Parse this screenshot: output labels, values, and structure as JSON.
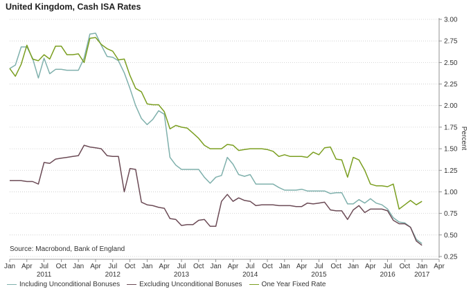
{
  "chart_data": {
    "type": "line",
    "title": "United Kingdom, Cash ISA Rates",
    "ylabel": "Percent",
    "ylim": [
      0.25,
      3.0
    ],
    "yticks": [
      "0.25",
      "0.50",
      "0.75",
      "1.00",
      "1.25",
      "1.50",
      "1.75",
      "2.00",
      "2.25",
      "2.50",
      "2.75",
      "3.00"
    ],
    "x_range": [
      2011.0,
      2017.25
    ],
    "month_ticks": [
      "Jan",
      "Apr",
      "Jul",
      "Oct",
      "Jan",
      "Apr",
      "Jul",
      "Oct",
      "Jan",
      "Apr",
      "Jul",
      "Oct",
      "Jan",
      "Apr",
      "Jul",
      "Oct",
      "Jan",
      "Apr",
      "Jul",
      "Oct",
      "Jan",
      "Apr",
      "Jul",
      "Oct",
      "Jan",
      "Apr"
    ],
    "years": [
      {
        "label": "2011",
        "x": 2011.5
      },
      {
        "label": "2012",
        "x": 2012.5
      },
      {
        "label": "2013",
        "x": 2013.5
      },
      {
        "label": "2014",
        "x": 2014.5
      },
      {
        "label": "2015",
        "x": 2015.5
      },
      {
        "label": "2016",
        "x": 2016.5
      },
      {
        "label": "2017",
        "x": 2017.0
      }
    ],
    "source": "Source: Macrobond, Bank of England",
    "grid": "horizontal-dotted",
    "legend_position": "bottom",
    "series": [
      {
        "name": "Including Unconditional Bonuses",
        "color": "#7fb0ac",
        "points": [
          [
            2011.0,
            2.43
          ],
          [
            2011.083,
            2.47
          ],
          [
            2011.167,
            2.68
          ],
          [
            2011.25,
            2.68
          ],
          [
            2011.333,
            2.55
          ],
          [
            2011.417,
            2.32
          ],
          [
            2011.5,
            2.55
          ],
          [
            2011.583,
            2.37
          ],
          [
            2011.667,
            2.42
          ],
          [
            2011.75,
            2.42
          ],
          [
            2011.833,
            2.41
          ],
          [
            2011.917,
            2.41
          ],
          [
            2012.0,
            2.41
          ],
          [
            2012.083,
            2.55
          ],
          [
            2012.167,
            2.83
          ],
          [
            2012.25,
            2.84
          ],
          [
            2012.333,
            2.7
          ],
          [
            2012.417,
            2.57
          ],
          [
            2012.5,
            2.56
          ],
          [
            2012.583,
            2.52
          ],
          [
            2012.667,
            2.38
          ],
          [
            2012.75,
            2.2
          ],
          [
            2012.833,
            2.0
          ],
          [
            2012.917,
            1.85
          ],
          [
            2013.0,
            1.78
          ],
          [
            2013.083,
            1.84
          ],
          [
            2013.167,
            1.94
          ],
          [
            2013.25,
            1.9
          ],
          [
            2013.333,
            1.4
          ],
          [
            2013.417,
            1.31
          ],
          [
            2013.5,
            1.26
          ],
          [
            2013.583,
            1.26
          ],
          [
            2013.667,
            1.26
          ],
          [
            2013.75,
            1.26
          ],
          [
            2013.833,
            1.17
          ],
          [
            2013.917,
            1.1
          ],
          [
            2014.0,
            1.17
          ],
          [
            2014.083,
            1.19
          ],
          [
            2014.167,
            1.4
          ],
          [
            2014.25,
            1.32
          ],
          [
            2014.333,
            1.2
          ],
          [
            2014.417,
            1.18
          ],
          [
            2014.5,
            1.2
          ],
          [
            2014.583,
            1.09
          ],
          [
            2014.667,
            1.09
          ],
          [
            2014.75,
            1.09
          ],
          [
            2014.833,
            1.09
          ],
          [
            2014.917,
            1.05
          ],
          [
            2015.0,
            1.02
          ],
          [
            2015.083,
            1.02
          ],
          [
            2015.167,
            1.02
          ],
          [
            2015.25,
            1.03
          ],
          [
            2015.333,
            1.01
          ],
          [
            2015.417,
            1.01
          ],
          [
            2015.5,
            1.01
          ],
          [
            2015.583,
            1.01
          ],
          [
            2015.667,
            0.98
          ],
          [
            2015.75,
            0.99
          ],
          [
            2015.833,
            0.99
          ],
          [
            2015.917,
            0.86
          ],
          [
            2016.0,
            0.86
          ],
          [
            2016.083,
            0.91
          ],
          [
            2016.167,
            0.87
          ],
          [
            2016.25,
            0.92
          ],
          [
            2016.333,
            0.87
          ],
          [
            2016.417,
            0.85
          ],
          [
            2016.5,
            0.8
          ],
          [
            2016.583,
            0.7
          ],
          [
            2016.667,
            0.65
          ],
          [
            2016.75,
            0.64
          ],
          [
            2016.833,
            0.59
          ],
          [
            2016.917,
            0.45
          ],
          [
            2017.0,
            0.4
          ]
        ]
      },
      {
        "name": "Excluding Unconditional Bonuses",
        "color": "#6b4a55",
        "points": [
          [
            2011.0,
            1.13
          ],
          [
            2011.167,
            1.13
          ],
          [
            2011.25,
            1.12
          ],
          [
            2011.333,
            1.12
          ],
          [
            2011.417,
            1.09
          ],
          [
            2011.5,
            1.34
          ],
          [
            2011.583,
            1.33
          ],
          [
            2011.667,
            1.38
          ],
          [
            2011.75,
            1.39
          ],
          [
            2011.833,
            1.4
          ],
          [
            2011.917,
            1.41
          ],
          [
            2012.0,
            1.42
          ],
          [
            2012.083,
            1.54
          ],
          [
            2012.167,
            1.52
          ],
          [
            2012.25,
            1.51
          ],
          [
            2012.333,
            1.5
          ],
          [
            2012.417,
            1.42
          ],
          [
            2012.5,
            1.41
          ],
          [
            2012.583,
            1.41
          ],
          [
            2012.667,
            1.0
          ],
          [
            2012.75,
            1.27
          ],
          [
            2012.833,
            1.26
          ],
          [
            2012.917,
            0.88
          ],
          [
            2013.0,
            0.85
          ],
          [
            2013.083,
            0.84
          ],
          [
            2013.167,
            0.82
          ],
          [
            2013.25,
            0.81
          ],
          [
            2013.333,
            0.69
          ],
          [
            2013.417,
            0.68
          ],
          [
            2013.5,
            0.61
          ],
          [
            2013.583,
            0.62
          ],
          [
            2013.667,
            0.62
          ],
          [
            2013.75,
            0.67
          ],
          [
            2013.833,
            0.68
          ],
          [
            2013.917,
            0.6
          ],
          [
            2014.0,
            0.6
          ],
          [
            2014.083,
            0.89
          ],
          [
            2014.167,
            0.97
          ],
          [
            2014.25,
            0.89
          ],
          [
            2014.333,
            0.93
          ],
          [
            2014.417,
            0.9
          ],
          [
            2014.5,
            0.89
          ],
          [
            2014.583,
            0.84
          ],
          [
            2014.667,
            0.85
          ],
          [
            2014.75,
            0.85
          ],
          [
            2014.833,
            0.85
          ],
          [
            2014.917,
            0.84
          ],
          [
            2015.0,
            0.84
          ],
          [
            2015.083,
            0.84
          ],
          [
            2015.167,
            0.83
          ],
          [
            2015.25,
            0.83
          ],
          [
            2015.333,
            0.87
          ],
          [
            2015.417,
            0.86
          ],
          [
            2015.5,
            0.87
          ],
          [
            2015.583,
            0.88
          ],
          [
            2015.667,
            0.79
          ],
          [
            2015.75,
            0.78
          ],
          [
            2015.833,
            0.78
          ],
          [
            2015.917,
            0.68
          ],
          [
            2016.0,
            0.79
          ],
          [
            2016.083,
            0.84
          ],
          [
            2016.167,
            0.76
          ],
          [
            2016.25,
            0.8
          ],
          [
            2016.333,
            0.8
          ],
          [
            2016.417,
            0.8
          ],
          [
            2016.5,
            0.78
          ],
          [
            2016.583,
            0.67
          ],
          [
            2016.667,
            0.63
          ],
          [
            2016.75,
            0.63
          ],
          [
            2016.833,
            0.59
          ],
          [
            2016.917,
            0.43
          ],
          [
            2017.0,
            0.38
          ]
        ]
      },
      {
        "name": "One Year Fixed Rate",
        "color": "#7a9e1f",
        "points": [
          [
            2011.0,
            2.43
          ],
          [
            2011.083,
            2.34
          ],
          [
            2011.167,
            2.48
          ],
          [
            2011.25,
            2.7
          ],
          [
            2011.333,
            2.54
          ],
          [
            2011.417,
            2.52
          ],
          [
            2011.5,
            2.59
          ],
          [
            2011.583,
            2.54
          ],
          [
            2011.667,
            2.69
          ],
          [
            2011.75,
            2.69
          ],
          [
            2011.833,
            2.59
          ],
          [
            2011.917,
            2.59
          ],
          [
            2012.0,
            2.6
          ],
          [
            2012.083,
            2.5
          ],
          [
            2012.167,
            2.78
          ],
          [
            2012.25,
            2.79
          ],
          [
            2012.333,
            2.71
          ],
          [
            2012.417,
            2.66
          ],
          [
            2012.5,
            2.63
          ],
          [
            2012.583,
            2.53
          ],
          [
            2012.667,
            2.54
          ],
          [
            2012.75,
            2.35
          ],
          [
            2012.833,
            2.2
          ],
          [
            2012.917,
            2.16
          ],
          [
            2013.0,
            2.02
          ],
          [
            2013.083,
            2.01
          ],
          [
            2013.167,
            2.01
          ],
          [
            2013.25,
            1.93
          ],
          [
            2013.333,
            1.73
          ],
          [
            2013.417,
            1.77
          ],
          [
            2013.5,
            1.75
          ],
          [
            2013.583,
            1.74
          ],
          [
            2013.667,
            1.68
          ],
          [
            2013.75,
            1.62
          ],
          [
            2013.833,
            1.54
          ],
          [
            2013.917,
            1.5
          ],
          [
            2014.0,
            1.5
          ],
          [
            2014.083,
            1.5
          ],
          [
            2014.167,
            1.55
          ],
          [
            2014.25,
            1.54
          ],
          [
            2014.333,
            1.48
          ],
          [
            2014.417,
            1.49
          ],
          [
            2014.5,
            1.5
          ],
          [
            2014.583,
            1.5
          ],
          [
            2014.667,
            1.5
          ],
          [
            2014.75,
            1.49
          ],
          [
            2014.833,
            1.47
          ],
          [
            2014.917,
            1.41
          ],
          [
            2015.0,
            1.43
          ],
          [
            2015.083,
            1.41
          ],
          [
            2015.167,
            1.41
          ],
          [
            2015.25,
            1.41
          ],
          [
            2015.333,
            1.4
          ],
          [
            2015.417,
            1.46
          ],
          [
            2015.5,
            1.43
          ],
          [
            2015.583,
            1.51
          ],
          [
            2015.667,
            1.52
          ],
          [
            2015.75,
            1.38
          ],
          [
            2015.833,
            1.37
          ],
          [
            2015.917,
            1.17
          ],
          [
            2016.0,
            1.4
          ],
          [
            2016.083,
            1.37
          ],
          [
            2016.167,
            1.25
          ],
          [
            2016.25,
            1.09
          ],
          [
            2016.333,
            1.07
          ],
          [
            2016.417,
            1.07
          ],
          [
            2016.5,
            1.06
          ],
          [
            2016.583,
            1.09
          ],
          [
            2016.667,
            0.8
          ],
          [
            2016.75,
            0.85
          ],
          [
            2016.833,
            0.9
          ],
          [
            2016.917,
            0.85
          ],
          [
            2017.0,
            0.89
          ]
        ]
      }
    ]
  }
}
